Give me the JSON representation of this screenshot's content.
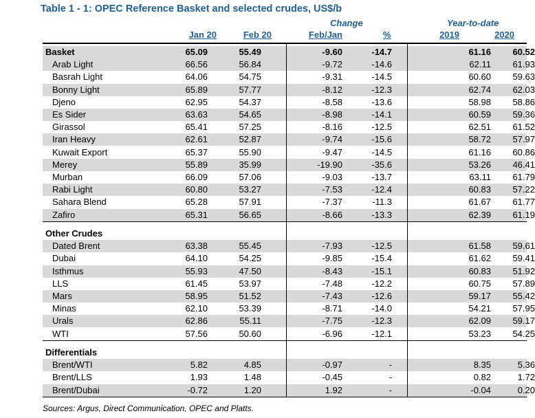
{
  "title": "Table 1 - 1: OPEC Reference Basket and selected crudes, US$/b",
  "headers": {
    "change": "Change",
    "ytd": "Year-to-date",
    "jan20": "Jan 20",
    "feb20": "Feb 20",
    "febjan": "Feb/Jan",
    "pct": "%",
    "y2019": "2019",
    "y2020": "2020"
  },
  "basket": {
    "label": "Basket",
    "values": [
      "65.09",
      "55.49",
      "-9.60",
      "-14.7",
      "61.16",
      "60.52"
    ],
    "rows": [
      {
        "name": "Arab Light",
        "values": [
          "66.56",
          "56.84",
          "-9.72",
          "-14.6",
          "62.11",
          "61.93"
        ]
      },
      {
        "name": "Basrah Light",
        "values": [
          "64.06",
          "54.75",
          "-9.31",
          "-14.5",
          "60.60",
          "59.63"
        ]
      },
      {
        "name": "Bonny Light",
        "values": [
          "65.89",
          "57.77",
          "-8.12",
          "-12.3",
          "62.74",
          "62.03"
        ]
      },
      {
        "name": "Djeno",
        "values": [
          "62.95",
          "54.37",
          "-8.58",
          "-13.6",
          "58.98",
          "58.86"
        ]
      },
      {
        "name": "Es Sider",
        "values": [
          "63.63",
          "54.65",
          "-8.98",
          "-14.1",
          "60.59",
          "59.36"
        ]
      },
      {
        "name": "Girassol",
        "values": [
          "65.41",
          "57.25",
          "-8.16",
          "-12.5",
          "62.51",
          "61.52"
        ]
      },
      {
        "name": "Iran Heavy",
        "values": [
          "62.61",
          "52.87",
          "-9.74",
          "-15.6",
          "58.72",
          "57.97"
        ]
      },
      {
        "name": "Kuwait Export",
        "values": [
          "65.37",
          "55.90",
          "-9.47",
          "-14.5",
          "61.16",
          "60.86"
        ]
      },
      {
        "name": "Merey",
        "values": [
          "55.89",
          "35.99",
          "-19.90",
          "-35.6",
          "53.26",
          "46.41"
        ]
      },
      {
        "name": "Murban",
        "values": [
          "66.09",
          "57.06",
          "-9.03",
          "-13.7",
          "63.11",
          "61.79"
        ]
      },
      {
        "name": "Rabi Light",
        "values": [
          "60.80",
          "53.27",
          "-7.53",
          "-12.4",
          "60.83",
          "57.22"
        ]
      },
      {
        "name": "Sahara Blend",
        "values": [
          "65.28",
          "57.91",
          "-7.37",
          "-11.3",
          "61.67",
          "61.77"
        ]
      },
      {
        "name": "Zafiro",
        "values": [
          "65.31",
          "56.65",
          "-8.66",
          "-13.3",
          "62.39",
          "61.19"
        ]
      }
    ]
  },
  "other": {
    "label": "Other Crudes",
    "rows": [
      {
        "name": "Dated Brent",
        "values": [
          "63.38",
          "55.45",
          "-7.93",
          "-12.5",
          "61.58",
          "59.61"
        ]
      },
      {
        "name": "Dubai",
        "values": [
          "64.10",
          "54.25",
          "-9.85",
          "-15.4",
          "61.62",
          "59.41"
        ]
      },
      {
        "name": "Isthmus",
        "values": [
          "55.93",
          "47.50",
          "-8.43",
          "-15.1",
          "60.83",
          "51.92"
        ]
      },
      {
        "name": "LLS",
        "values": [
          "61.45",
          "53.97",
          "-7.48",
          "-12.2",
          "60.75",
          "57.89"
        ]
      },
      {
        "name": "Mars",
        "values": [
          "58.95",
          "51.52",
          "-7.43",
          "-12.6",
          "59.17",
          "55.42"
        ]
      },
      {
        "name": "Minas",
        "values": [
          "62.10",
          "53.39",
          "-8.71",
          "-14.0",
          "54.21",
          "57.95"
        ]
      },
      {
        "name": "Urals",
        "values": [
          "62.86",
          "55.11",
          "-7.75",
          "-12.3",
          "62.09",
          "59.17"
        ]
      },
      {
        "name": "WTI",
        "values": [
          "57.56",
          "50.60",
          "-6.96",
          "-12.1",
          "53.23",
          "54.25"
        ]
      }
    ]
  },
  "differentials": {
    "label": "Differentials",
    "rows": [
      {
        "name": "Brent/WTI",
        "values": [
          "5.82",
          "4.85",
          "-0.97",
          "-",
          "8.35",
          "5.36"
        ]
      },
      {
        "name": "Brent/LLS",
        "values": [
          "1.93",
          "1.48",
          "-0.45",
          "-",
          "0.82",
          "1.72"
        ]
      },
      {
        "name": "Brent/Dubai",
        "values": [
          "-0.72",
          "1.20",
          "1.92",
          "-",
          "-0.04",
          "0.20"
        ]
      }
    ]
  },
  "source": "Sources: Argus, Direct Communication, OPEC and Platts."
}
